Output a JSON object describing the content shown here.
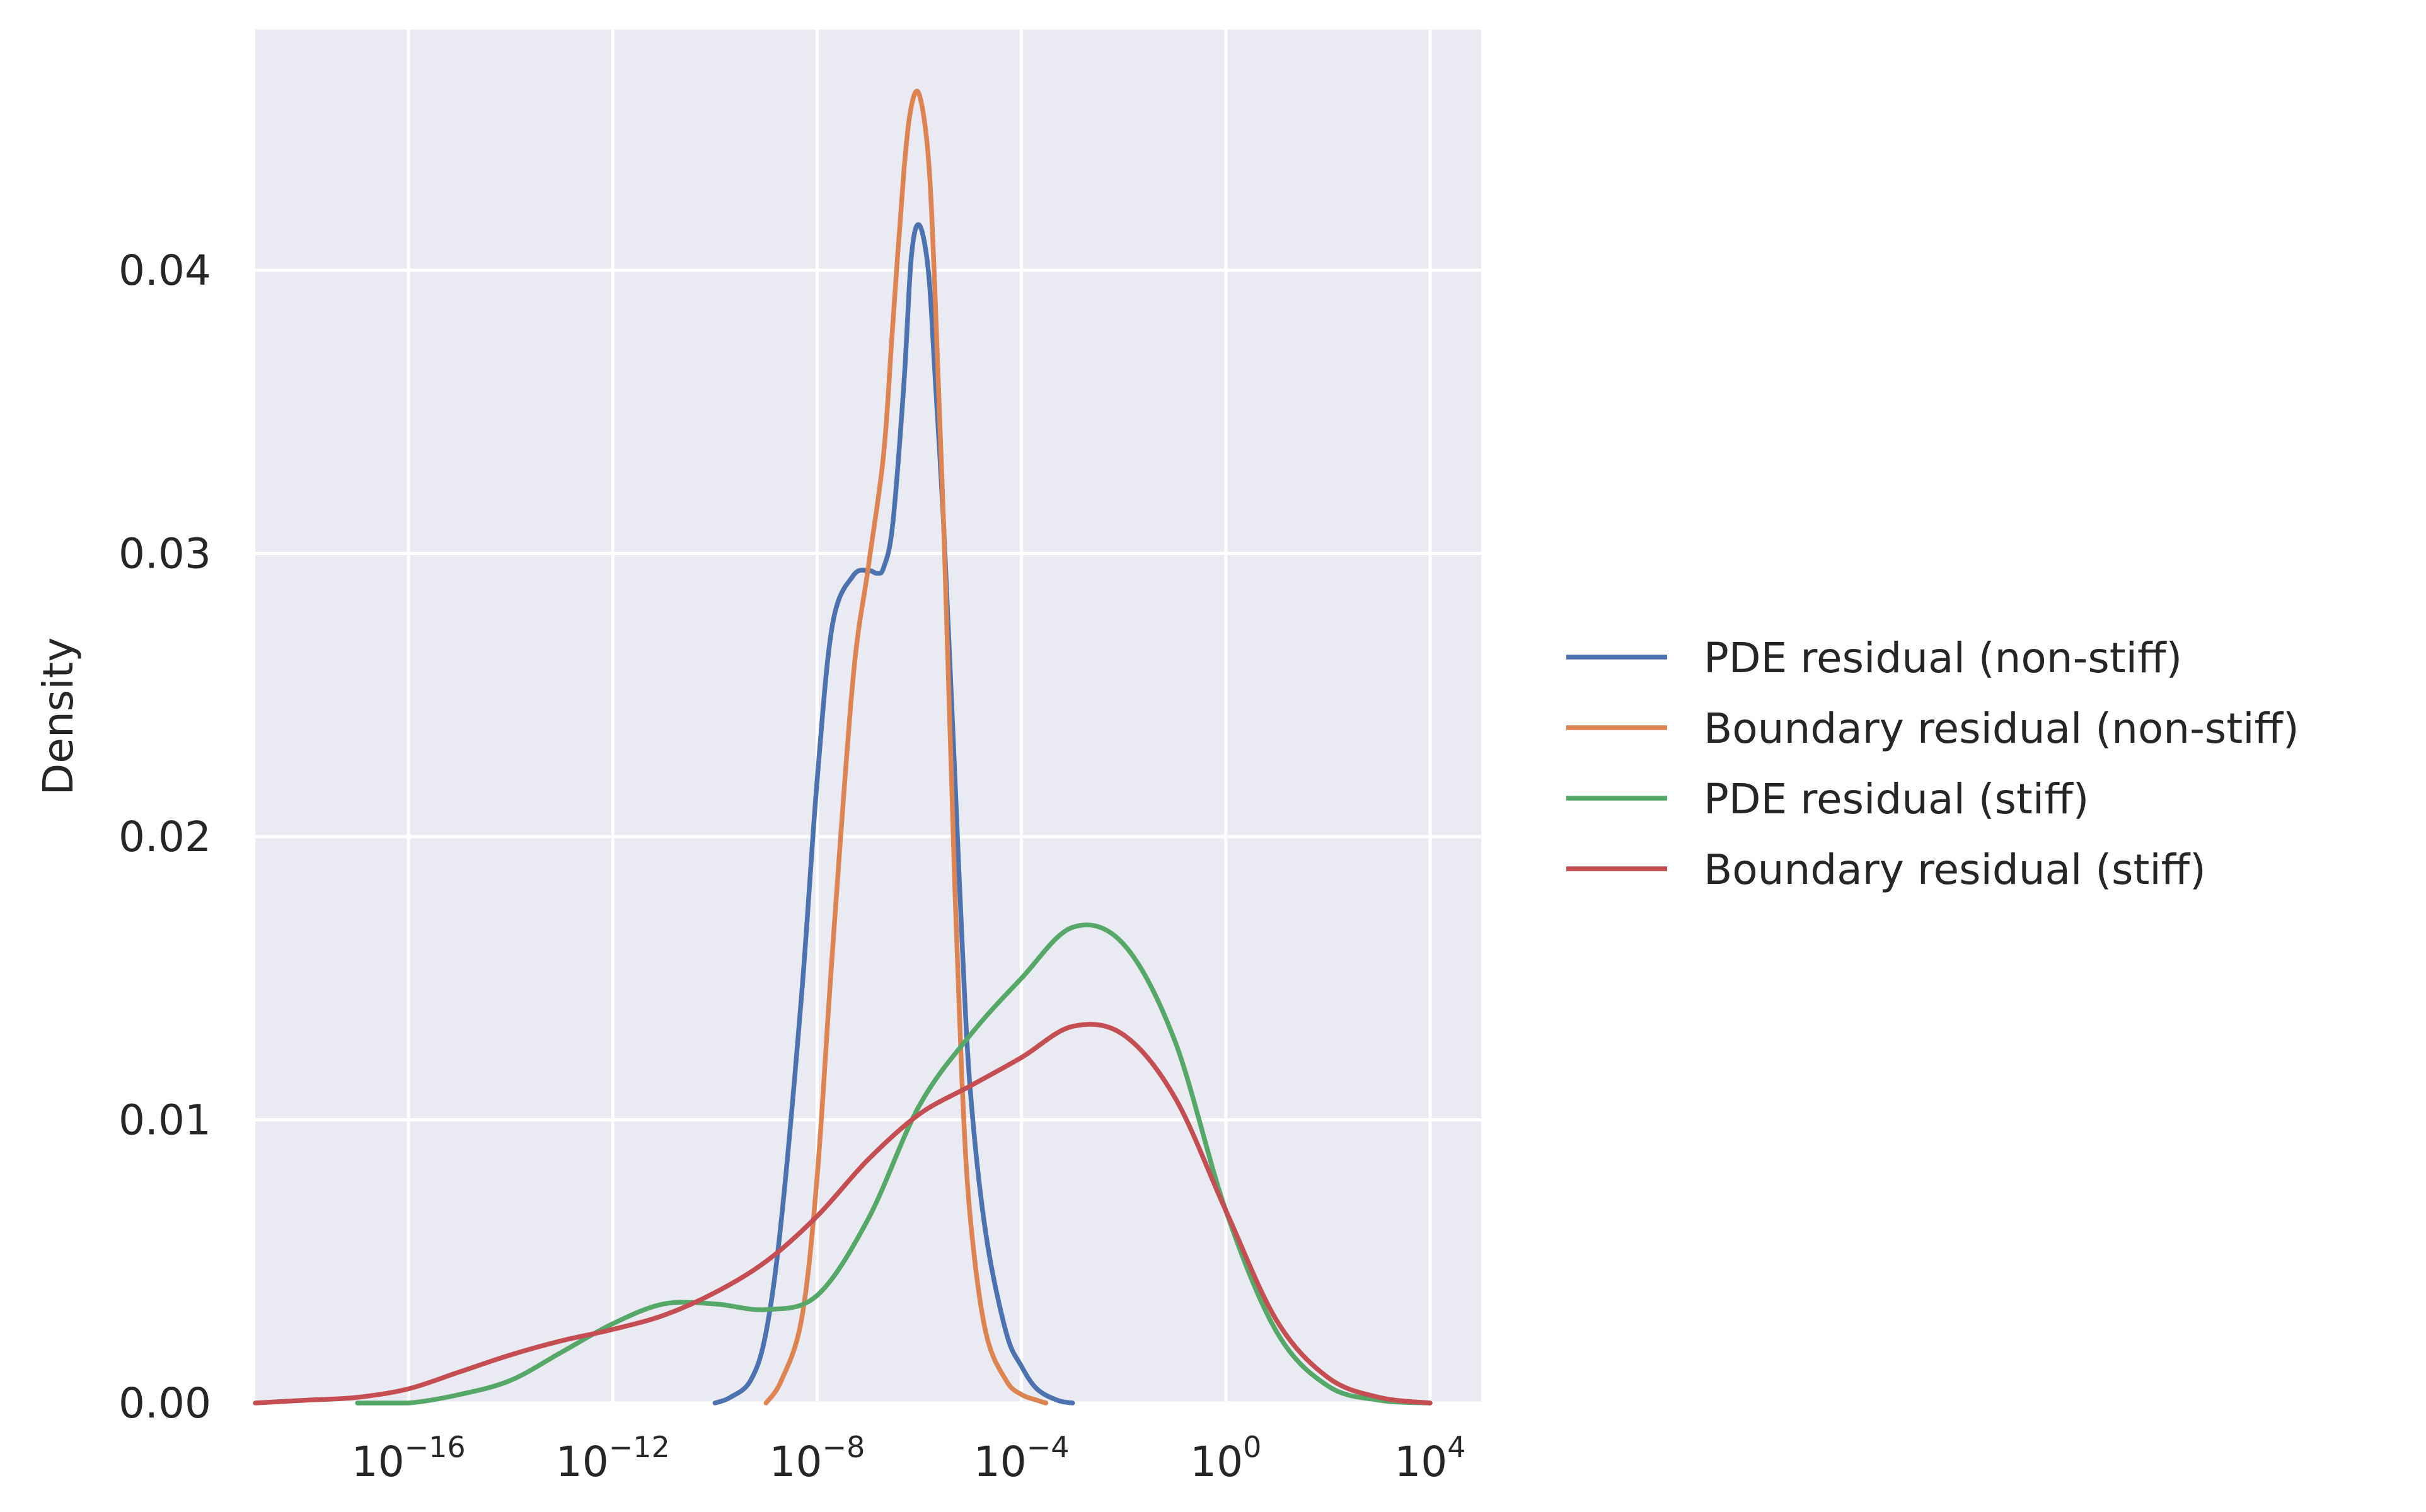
{
  "chart_data": {
    "type": "line",
    "title": "",
    "xlabel": "",
    "ylabel": "Density",
    "x_scale": "log",
    "xlim": [
      1e-19,
      100000.0
    ],
    "ylim": [
      0,
      0.0485
    ],
    "grid": true,
    "legend_placement": "outside-right",
    "x_ticks": [
      {
        "value": 1e-16,
        "base": "10",
        "exp": "−16"
      },
      {
        "value": 1e-12,
        "base": "10",
        "exp": "−12"
      },
      {
        "value": 1e-08,
        "base": "10",
        "exp": "−8"
      },
      {
        "value": 0.0001,
        "base": "10",
        "exp": "−4"
      },
      {
        "value": 1,
        "base": "10",
        "exp": "0"
      },
      {
        "value": 10000.0,
        "base": "10",
        "exp": "4"
      }
    ],
    "y_ticks": [
      {
        "value": 0.0,
        "label": "0.00"
      },
      {
        "value": 0.01,
        "label": "0.01"
      },
      {
        "value": 0.02,
        "label": "0.02"
      },
      {
        "value": 0.03,
        "label": "0.03"
      },
      {
        "value": 0.04,
        "label": "0.04"
      }
    ],
    "series": [
      {
        "name": "PDE residual (non-stiff)",
        "color": "#4c72b0",
        "x": [
          1e-10,
          2e-10,
          5e-10,
          1e-09,
          2e-09,
          5e-09,
          1e-08,
          2e-08,
          5e-08,
          1e-07,
          1.5e-07,
          2e-07,
          3e-07,
          5e-07,
          7e-07,
          1e-06,
          1.5e-06,
          2e-06,
          3e-06,
          4e-06,
          5e-06,
          7e-06,
          1e-05,
          2e-05,
          5e-05,
          0.0001,
          0.0002,
          0.0005,
          0.001
        ],
        "y": [
          0.0,
          0.0002,
          0.0008,
          0.0025,
          0.0065,
          0.0145,
          0.022,
          0.0275,
          0.0292,
          0.0294,
          0.0293,
          0.0295,
          0.031,
          0.036,
          0.0405,
          0.0416,
          0.04,
          0.0365,
          0.031,
          0.026,
          0.022,
          0.016,
          0.011,
          0.006,
          0.0025,
          0.0013,
          0.0005,
          0.0001,
          0.0
        ]
      },
      {
        "name": "Boundary residual (non-stiff)",
        "color": "#dd8452",
        "x": [
          1e-09,
          2e-09,
          5e-09,
          1e-08,
          2e-08,
          5e-08,
          1e-07,
          2e-07,
          3e-07,
          5e-07,
          7e-07,
          1e-06,
          1.5e-06,
          2e-06,
          3e-06,
          5e-06,
          7e-06,
          1e-05,
          2e-05,
          5e-05,
          0.0001,
          0.0002,
          0.0003
        ],
        "y": [
          0.0,
          0.0008,
          0.003,
          0.008,
          0.016,
          0.0255,
          0.0295,
          0.0335,
          0.038,
          0.0435,
          0.0458,
          0.0462,
          0.044,
          0.0395,
          0.031,
          0.018,
          0.011,
          0.0065,
          0.0025,
          0.0008,
          0.0003,
          0.0001,
          0.0
        ]
      },
      {
        "name": "PDE residual (stiff)",
        "color": "#55a868",
        "x": [
          1e-17,
          1e-16,
          1e-15,
          1e-14,
          1e-13,
          1e-12,
          1e-11,
          1e-10,
          1e-09,
          1e-08,
          1e-07,
          1e-06,
          1e-05,
          0.0001,
          0.001,
          0.01,
          0.1,
          1,
          10.0,
          100.0,
          1000.0,
          10000.0
        ],
        "y": [
          0.0,
          0.0,
          0.0003,
          0.0008,
          0.0018,
          0.0028,
          0.0035,
          0.0035,
          0.0033,
          0.0038,
          0.0065,
          0.0105,
          0.013,
          0.015,
          0.0168,
          0.0162,
          0.0128,
          0.0068,
          0.0025,
          0.0006,
          0.0001,
          0.0
        ]
      },
      {
        "name": "Boundary residual (stiff)",
        "color": "#c44e52",
        "x": [
          1e-19,
          1e-18,
          1e-17,
          1e-16,
          1e-15,
          1e-14,
          1e-13,
          1e-12,
          1e-11,
          1e-10,
          1e-09,
          1e-08,
          1e-07,
          1e-06,
          1e-05,
          0.0001,
          0.001,
          0.01,
          0.1,
          1,
          10.0,
          100.0,
          1000.0,
          10000.0
        ],
        "y": [
          0.0,
          0.0001,
          0.0002,
          0.0005,
          0.0011,
          0.0017,
          0.0022,
          0.0026,
          0.0031,
          0.0039,
          0.005,
          0.0066,
          0.0086,
          0.0102,
          0.0112,
          0.0122,
          0.0133,
          0.013,
          0.0108,
          0.0068,
          0.0029,
          0.0009,
          0.0002,
          0.0
        ]
      }
    ]
  }
}
